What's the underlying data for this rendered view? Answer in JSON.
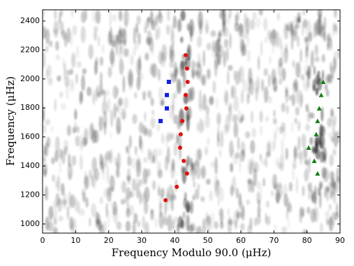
{
  "chart_data": {
    "type": "scatter",
    "xlabel": "Frequency Modulo 90.0 (μHz)",
    "ylabel": "Frequency (μHz)",
    "xlim": [
      0,
      90
    ],
    "xticks": [
      0,
      10,
      20,
      30,
      40,
      50,
      60,
      70,
      80,
      90
    ],
    "ylim": [
      937,
      2477
    ],
    "yticks": [
      1000,
      1200,
      1400,
      1600,
      1800,
      2000,
      2200,
      2400
    ],
    "series": [
      {
        "color": "#e01010",
        "marker": "circle",
        "x": [
          43.3,
          43.7,
          43.9,
          43.3,
          43.5,
          42.3,
          41.8,
          41.6,
          42.7,
          43.7,
          40.6,
          37.2
        ],
        "values": [
          2164,
          2072,
          1980,
          1889,
          1797,
          1710,
          1618,
          1526,
          1435,
          1348,
          1256,
          1164
        ]
      },
      {
        "color": "#1020e0",
        "marker": "square",
        "x": [
          38.2,
          37.6,
          37.6,
          35.7
        ],
        "values": [
          1980,
          1889,
          1797,
          1710
        ]
      },
      {
        "color": "#108010",
        "marker": "triangle",
        "x": [
          84.9,
          84.3,
          83.7,
          83.2,
          82.8,
          80.5,
          82.2,
          83.2
        ],
        "values": [
          1980,
          1889,
          1797,
          1710,
          1618,
          1526,
          1435,
          1348
        ]
      }
    ]
  }
}
